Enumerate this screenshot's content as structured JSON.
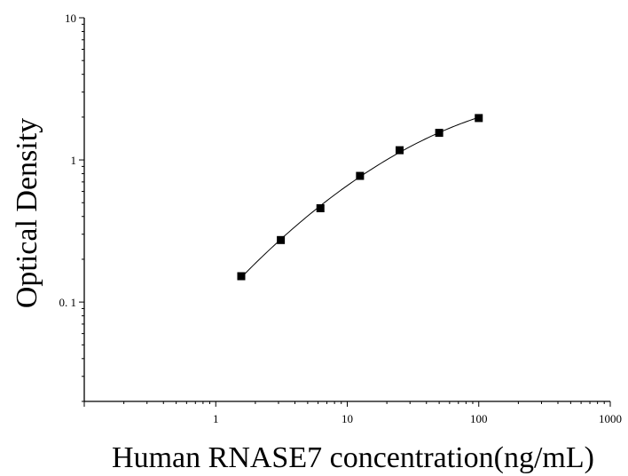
{
  "chart_data": {
    "type": "scatter",
    "title": "",
    "xlabel": "Human RNASE7 concentration(ng/mL)",
    "ylabel": "Optical Density",
    "x_scale": "log",
    "y_scale": "log",
    "xlim": [
      0.1,
      1000
    ],
    "ylim": [
      0.02,
      10
    ],
    "x_ticks": [
      {
        "value": 1,
        "label": "1"
      },
      {
        "value": 10,
        "label": "10"
      },
      {
        "value": 100,
        "label": "100"
      },
      {
        "value": 1000,
        "label": "1000"
      }
    ],
    "y_ticks": [
      {
        "value": 0.1,
        "label": "0. 1"
      },
      {
        "value": 1,
        "label": "1"
      },
      {
        "value": 10,
        "label": "10"
      }
    ],
    "grid": false,
    "legend": "none",
    "series": [
      {
        "marker": "square",
        "fit_line": true,
        "x": [
          1.5625,
          3.125,
          6.25,
          12.5,
          25,
          50,
          100
        ],
        "y": [
          0.152,
          0.273,
          0.457,
          0.772,
          1.17,
          1.55,
          1.97
        ]
      }
    ],
    "colors": {
      "marker": "#000000",
      "line": "#000000",
      "axis": "#000000"
    }
  }
}
